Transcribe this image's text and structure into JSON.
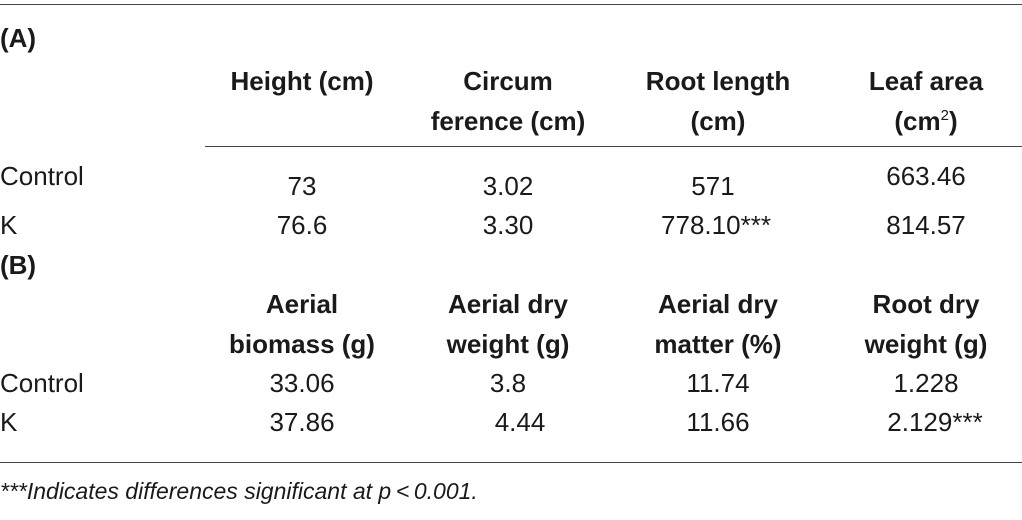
{
  "section_a": {
    "label": "(A)",
    "headers": [
      {
        "line1": "Height (cm)",
        "line2": ""
      },
      {
        "line1": "Circum",
        "line2": "ference (cm)"
      },
      {
        "line1": "Root length",
        "line2": "(cm)"
      },
      {
        "line1": "Leaf area",
        "line2": "(cm",
        "sup": "2",
        "tail": ")"
      }
    ],
    "rows": [
      {
        "name": "Control",
        "values": [
          "73",
          "3.02",
          "571",
          "663.46"
        ]
      },
      {
        "name": "K",
        "values": [
          "76.6",
          "3.30",
          "778.10***",
          "814.57"
        ]
      }
    ]
  },
  "section_b": {
    "label": "(B)",
    "headers": [
      {
        "line1": "Aerial",
        "line2": "biomass (g)"
      },
      {
        "line1": "Aerial dry",
        "line2": "weight (g)"
      },
      {
        "line1": "Aerial dry",
        "line2": "matter (%)"
      },
      {
        "line1": "Root dry",
        "line2": "weight (g)"
      }
    ],
    "rows": [
      {
        "name": "Control",
        "values": [
          "33.06",
          "3.8",
          "11.74",
          "1.228"
        ]
      },
      {
        "name": "K",
        "values": [
          "37.86",
          "4.44",
          "11.66",
          "2.129***"
        ]
      }
    ]
  },
  "footnote": "***Indicates differences significant at p < 0.001."
}
